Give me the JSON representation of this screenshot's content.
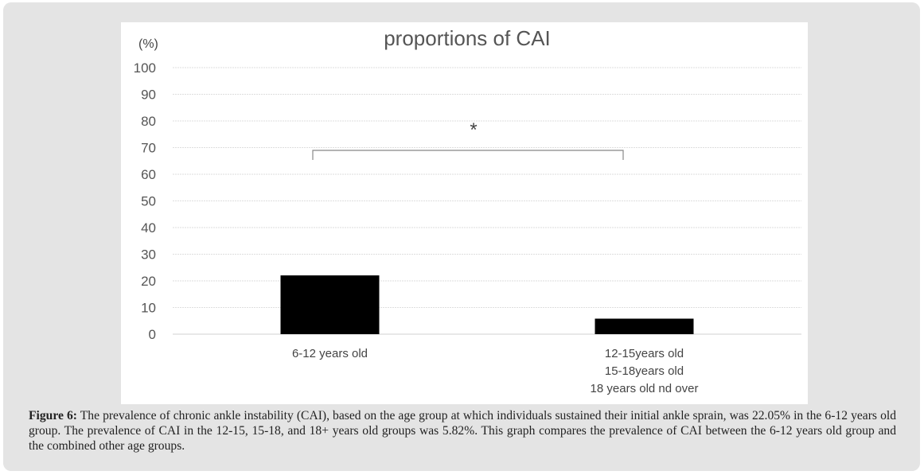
{
  "chart_data": {
    "type": "bar",
    "title": "proportions of CAI",
    "ylabel": "(%)",
    "xlabel": "",
    "ylim": [
      0,
      100
    ],
    "yticks": [
      0,
      10,
      20,
      30,
      40,
      50,
      60,
      70,
      80,
      90,
      100
    ],
    "grid": true,
    "categories": [
      [
        "6-12 years old"
      ],
      [
        "12-15years old",
        "15-18years old",
        "18 years old nd over"
      ]
    ],
    "values": [
      22.05,
      5.82
    ],
    "bar_color": "#000000",
    "significance": {
      "between": [
        0,
        1
      ],
      "label": "*"
    }
  },
  "caption": {
    "label": "Figure 6:",
    "text": " The prevalence of chronic ankle instability (CAI), based on the age group at which individuals sustained their initial ankle sprain, was 22.05% in the 6-12 years old group. The prevalence of CAI in the 12-15, 15-18, and 18+ years old groups was 5.82%. This graph compares the prevalence of CAI between the 6-12 years old group and the combined other age groups."
  }
}
